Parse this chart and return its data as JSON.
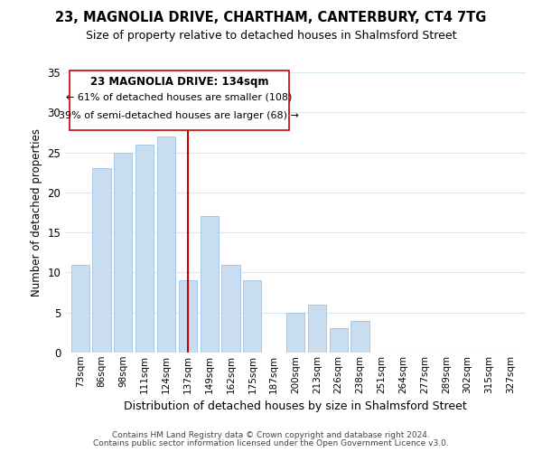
{
  "title": "23, MAGNOLIA DRIVE, CHARTHAM, CANTERBURY, CT4 7TG",
  "subtitle": "Size of property relative to detached houses in Shalmsford Street",
  "xlabel": "Distribution of detached houses by size in Shalmsford Street",
  "ylabel": "Number of detached properties",
  "bar_color": "#c8ddf0",
  "bar_edge_color": "#a8c8e8",
  "background_color": "#ffffff",
  "grid_color": "#d8e8f0",
  "categories": [
    "73sqm",
    "86sqm",
    "98sqm",
    "111sqm",
    "124sqm",
    "137sqm",
    "149sqm",
    "162sqm",
    "175sqm",
    "187sqm",
    "200sqm",
    "213sqm",
    "226sqm",
    "238sqm",
    "251sqm",
    "264sqm",
    "277sqm",
    "289sqm",
    "302sqm",
    "315sqm",
    "327sqm"
  ],
  "values": [
    11,
    23,
    25,
    26,
    27,
    9,
    17,
    11,
    9,
    0,
    5,
    6,
    3,
    4,
    0,
    0,
    0,
    0,
    0,
    0,
    0
  ],
  "ylim": [
    0,
    35
  ],
  "yticks": [
    0,
    5,
    10,
    15,
    20,
    25,
    30,
    35
  ],
  "ref_line_index": 5,
  "ref_line_color": "#cc0000",
  "annotation_title": "23 MAGNOLIA DRIVE: 134sqm",
  "annotation_line1": "← 61% of detached houses are smaller (108)",
  "annotation_line2": "39% of semi-detached houses are larger (68) →",
  "annotation_box_color": "#ffffff",
  "annotation_box_edge": "#cc0000",
  "footnote1": "Contains HM Land Registry data © Crown copyright and database right 2024.",
  "footnote2": "Contains public sector information licensed under the Open Government Licence v3.0."
}
